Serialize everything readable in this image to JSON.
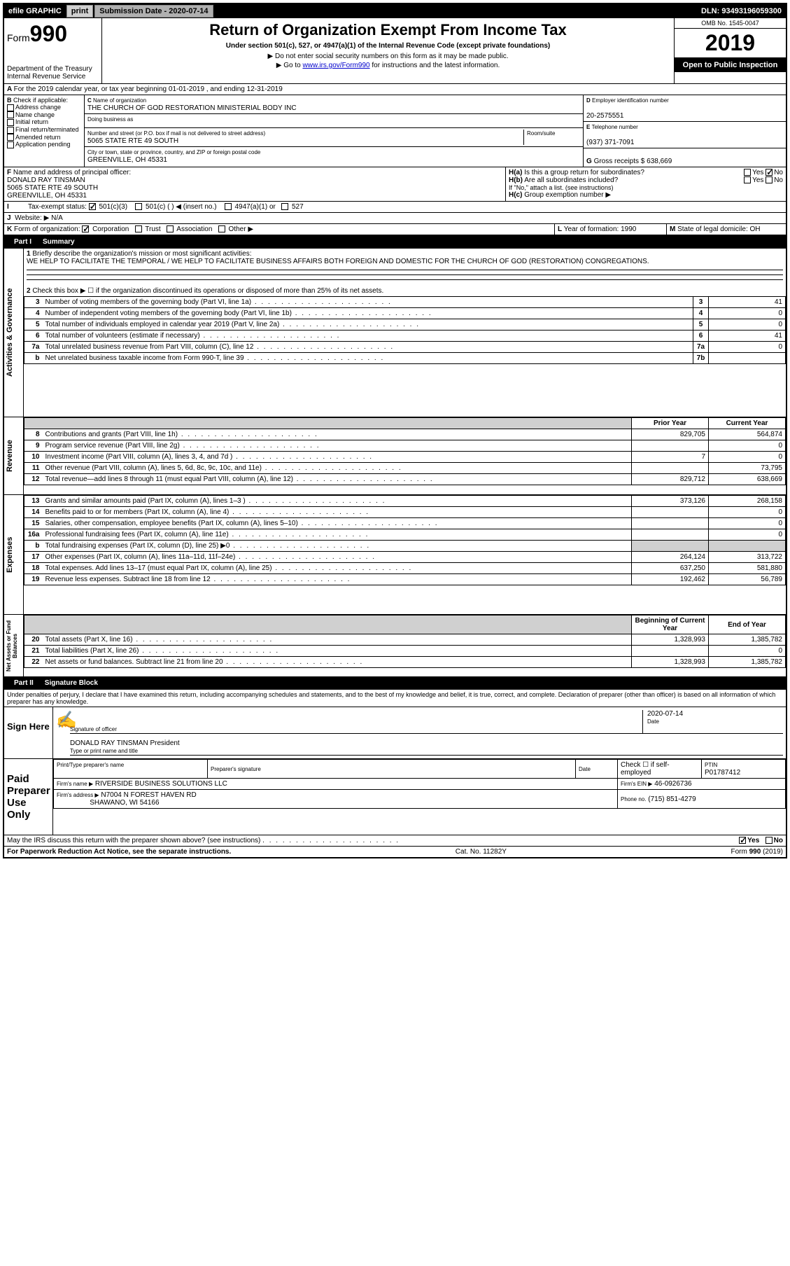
{
  "topbar": {
    "efile": "efile GRAPHIC",
    "print": "print",
    "submission_label": "Submission Date - 2020-07-14",
    "dln": "DLN: 93493196059300"
  },
  "header": {
    "form_label": "Form",
    "form_number": "990",
    "dept": "Department of the Treasury",
    "irs": "Internal Revenue Service",
    "title": "Return of Organization Exempt From Income Tax",
    "subtitle": "Under section 501(c), 527, or 4947(a)(1) of the Internal Revenue Code (except private foundations)",
    "warn1": "▶ Do not enter social security numbers on this form as it may be made public.",
    "warn2_pre": "▶ Go to ",
    "warn2_link": "www.irs.gov/Form990",
    "warn2_post": " for instructions and the latest information.",
    "omb": "OMB No. 1545-0047",
    "year": "2019",
    "inspection": "Open to Public Inspection"
  },
  "period": {
    "line": "For the 2019 calendar year, or tax year beginning 01-01-2019    , and ending 12-31-2019"
  },
  "boxB": {
    "label": "Check if applicable:",
    "items": [
      "Address change",
      "Name change",
      "Initial return",
      "Final return/terminated",
      "Amended return",
      "Application pending"
    ]
  },
  "boxC": {
    "name_label": "Name of organization",
    "name": "THE CHURCH OF GOD RESTORATION MINISTERIAL BODY INC",
    "dba_label": "Doing business as",
    "addr_label": "Number and street (or P.O. box if mail is not delivered to street address)",
    "addr": "5065 STATE RTE 49 SOUTH",
    "room_label": "Room/suite",
    "city_label": "City or town, state or province, country, and ZIP or foreign postal code",
    "city": "GREENVILLE, OH  45331"
  },
  "boxD": {
    "label": "Employer identification number",
    "value": "20-2575551"
  },
  "boxE": {
    "label": "Telephone number",
    "value": "(937) 371-7091"
  },
  "boxG": {
    "label": "Gross receipts $",
    "value": "638,669"
  },
  "boxF": {
    "label": "Name and address of principal officer:",
    "name": "DONALD RAY TINSMAN",
    "addr1": "5065 STATE RTE 49 SOUTH",
    "addr2": "GREENVILLE, OH  45331"
  },
  "boxH": {
    "a": "Is this a group return for subordinates?",
    "b": "Are all subordinates included?",
    "b_note": "If \"No,\" attach a list. (see instructions)",
    "c": "Group exemption number ▶",
    "yes": "Yes",
    "no": "No"
  },
  "boxI": {
    "label": "Tax-exempt status:",
    "opts": [
      "501(c)(3)",
      "501(c) (   ) ◀ (insert no.)",
      "4947(a)(1) or",
      "527"
    ]
  },
  "boxJ": {
    "label": "Website: ▶",
    "value": "N/A"
  },
  "boxK": {
    "label": "Form of organization:",
    "opts": [
      "Corporation",
      "Trust",
      "Association",
      "Other ▶"
    ]
  },
  "boxL": {
    "label": "Year of formation:",
    "value": "1990"
  },
  "boxM": {
    "label": "State of legal domicile:",
    "value": "OH"
  },
  "part1": {
    "title": "Summary",
    "q1_label": "Briefly describe the organization's mission or most significant activities:",
    "q1_text": "WE HELP TO FACILITATE THE TEMPORAL / WE HELP TO FACILITATE BUSINESS AFFAIRS BOTH FOREIGN AND DOMESTIC FOR THE CHURCH OF GOD (RESTORATION) CONGREGATIONS.",
    "q2": "Check this box ▶ ☐  if the organization discontinued its operations or disposed of more than 25% of its net assets.",
    "sections": {
      "gov_label": "Activities & Governance",
      "rev_label": "Revenue",
      "exp_label": "Expenses",
      "net_label": "Net Assets or Fund Balances"
    },
    "gov_rows": [
      {
        "n": "3",
        "d": "Number of voting members of the governing body (Part VI, line 1a)",
        "box": "3",
        "v": "41"
      },
      {
        "n": "4",
        "d": "Number of independent voting members of the governing body (Part VI, line 1b)",
        "box": "4",
        "v": "0"
      },
      {
        "n": "5",
        "d": "Total number of individuals employed in calendar year 2019 (Part V, line 2a)",
        "box": "5",
        "v": "0"
      },
      {
        "n": "6",
        "d": "Total number of volunteers (estimate if necessary)",
        "box": "6",
        "v": "41"
      },
      {
        "n": "7a",
        "d": "Total unrelated business revenue from Part VIII, column (C), line 12",
        "box": "7a",
        "v": "0"
      },
      {
        "n": "b",
        "d": "Net unrelated business taxable income from Form 990-T, line 39",
        "box": "7b",
        "v": ""
      }
    ],
    "col_prior": "Prior Year",
    "col_current": "Current Year",
    "rev_rows": [
      {
        "n": "8",
        "d": "Contributions and grants (Part VIII, line 1h)",
        "p": "829,705",
        "c": "564,874"
      },
      {
        "n": "9",
        "d": "Program service revenue (Part VIII, line 2g)",
        "p": "",
        "c": "0"
      },
      {
        "n": "10",
        "d": "Investment income (Part VIII, column (A), lines 3, 4, and 7d )",
        "p": "7",
        "c": "0"
      },
      {
        "n": "11",
        "d": "Other revenue (Part VIII, column (A), lines 5, 6d, 8c, 9c, 10c, and 11e)",
        "p": "",
        "c": "73,795"
      },
      {
        "n": "12",
        "d": "Total revenue—add lines 8 through 11 (must equal Part VIII, column (A), line 12)",
        "p": "829,712",
        "c": "638,669"
      }
    ],
    "exp_rows": [
      {
        "n": "13",
        "d": "Grants and similar amounts paid (Part IX, column (A), lines 1–3 )",
        "p": "373,126",
        "c": "268,158"
      },
      {
        "n": "14",
        "d": "Benefits paid to or for members (Part IX, column (A), line 4)",
        "p": "",
        "c": "0"
      },
      {
        "n": "15",
        "d": "Salaries, other compensation, employee benefits (Part IX, column (A), lines 5–10)",
        "p": "",
        "c": "0"
      },
      {
        "n": "16a",
        "d": "Professional fundraising fees (Part IX, column (A), line 11e)",
        "p": "",
        "c": "0"
      },
      {
        "n": "b",
        "d": "Total fundraising expenses (Part IX, column (D), line 25) ▶0",
        "p": "SHADE",
        "c": "SHADE"
      },
      {
        "n": "17",
        "d": "Other expenses (Part IX, column (A), lines 11a–11d, 11f–24e)",
        "p": "264,124",
        "c": "313,722"
      },
      {
        "n": "18",
        "d": "Total expenses. Add lines 13–17 (must equal Part IX, column (A), line 25)",
        "p": "637,250",
        "c": "581,880"
      },
      {
        "n": "19",
        "d": "Revenue less expenses. Subtract line 18 from line 12",
        "p": "192,462",
        "c": "56,789"
      }
    ],
    "col_begin": "Beginning of Current Year",
    "col_end": "End of Year",
    "net_rows": [
      {
        "n": "20",
        "d": "Total assets (Part X, line 16)",
        "p": "1,328,993",
        "c": "1,385,782"
      },
      {
        "n": "21",
        "d": "Total liabilities (Part X, line 26)",
        "p": "",
        "c": "0"
      },
      {
        "n": "22",
        "d": "Net assets or fund balances. Subtract line 21 from line 20",
        "p": "1,328,993",
        "c": "1,385,782"
      }
    ]
  },
  "part2": {
    "title": "Signature Block",
    "perjury": "Under penalties of perjury, I declare that I have examined this return, including accompanying schedules and statements, and to the best of my knowledge and belief, it is true, correct, and complete. Declaration of preparer (other than officer) is based on all information of which preparer has any knowledge.",
    "sign_here": "Sign Here",
    "sig_officer": "Signature of officer",
    "date_label": "Date",
    "date": "2020-07-14",
    "officer_name": "DONALD RAY TINSMAN  President",
    "type_label": "Type or print name and title",
    "paid": "Paid Preparer Use Only",
    "prep_name_label": "Print/Type preparer's name",
    "prep_sig_label": "Preparer's signature",
    "check_self": "Check ☐ if self-employed",
    "ptin_label": "PTIN",
    "ptin": "P01787412",
    "firm_name_label": "Firm's name   ▶",
    "firm_name": "RIVERSIDE BUSINESS SOLUTIONS LLC",
    "firm_ein_label": "Firm's EIN ▶",
    "firm_ein": "46-0926736",
    "firm_addr_label": "Firm's address ▶",
    "firm_addr1": "N7004 N FOREST HAVEN RD",
    "firm_addr2": "SHAWANO, WI  54166",
    "phone_label": "Phone no.",
    "phone": "(715) 851-4279",
    "discuss": "May the IRS discuss this return with the preparer shown above? (see instructions)"
  },
  "footer": {
    "left": "For Paperwork Reduction Act Notice, see the separate instructions.",
    "mid": "Cat. No. 11282Y",
    "right": "Form 990 (2019)"
  }
}
